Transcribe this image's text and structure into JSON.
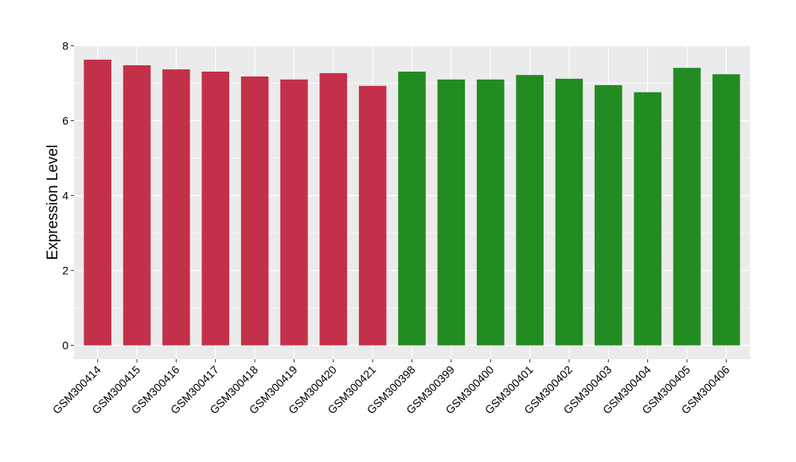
{
  "chart_data": {
    "type": "bar",
    "title": "",
    "xlabel": "",
    "ylabel": "Expression Level",
    "categories": [
      "GSM300414",
      "GSM300415",
      "GSM300416",
      "GSM300417",
      "GSM300418",
      "GSM300419",
      "GSM300420",
      "GSM300421",
      "GSM300398",
      "GSM300399",
      "GSM300400",
      "GSM300401",
      "GSM300402",
      "GSM300403",
      "GSM300404",
      "GSM300405",
      "GSM300406"
    ],
    "values": [
      7.63,
      7.48,
      7.37,
      7.31,
      7.18,
      7.1,
      7.27,
      6.93,
      7.31,
      7.1,
      7.1,
      7.22,
      7.12,
      6.95,
      6.76,
      7.41,
      7.24
    ],
    "bar_colors": [
      "#C3304A",
      "#C3304A",
      "#C3304A",
      "#C3304A",
      "#C3304A",
      "#C3304A",
      "#C3304A",
      "#C3304A",
      "#228B22",
      "#228B22",
      "#228B22",
      "#228B22",
      "#228B22",
      "#228B22",
      "#228B22",
      "#228B22",
      "#228B22"
    ],
    "yticks": [
      0,
      2,
      4,
      6,
      8
    ],
    "ylim": [
      -0.37,
      8.01
    ],
    "grid": true,
    "panel_background": "#EBEBEB",
    "legend": "none"
  }
}
